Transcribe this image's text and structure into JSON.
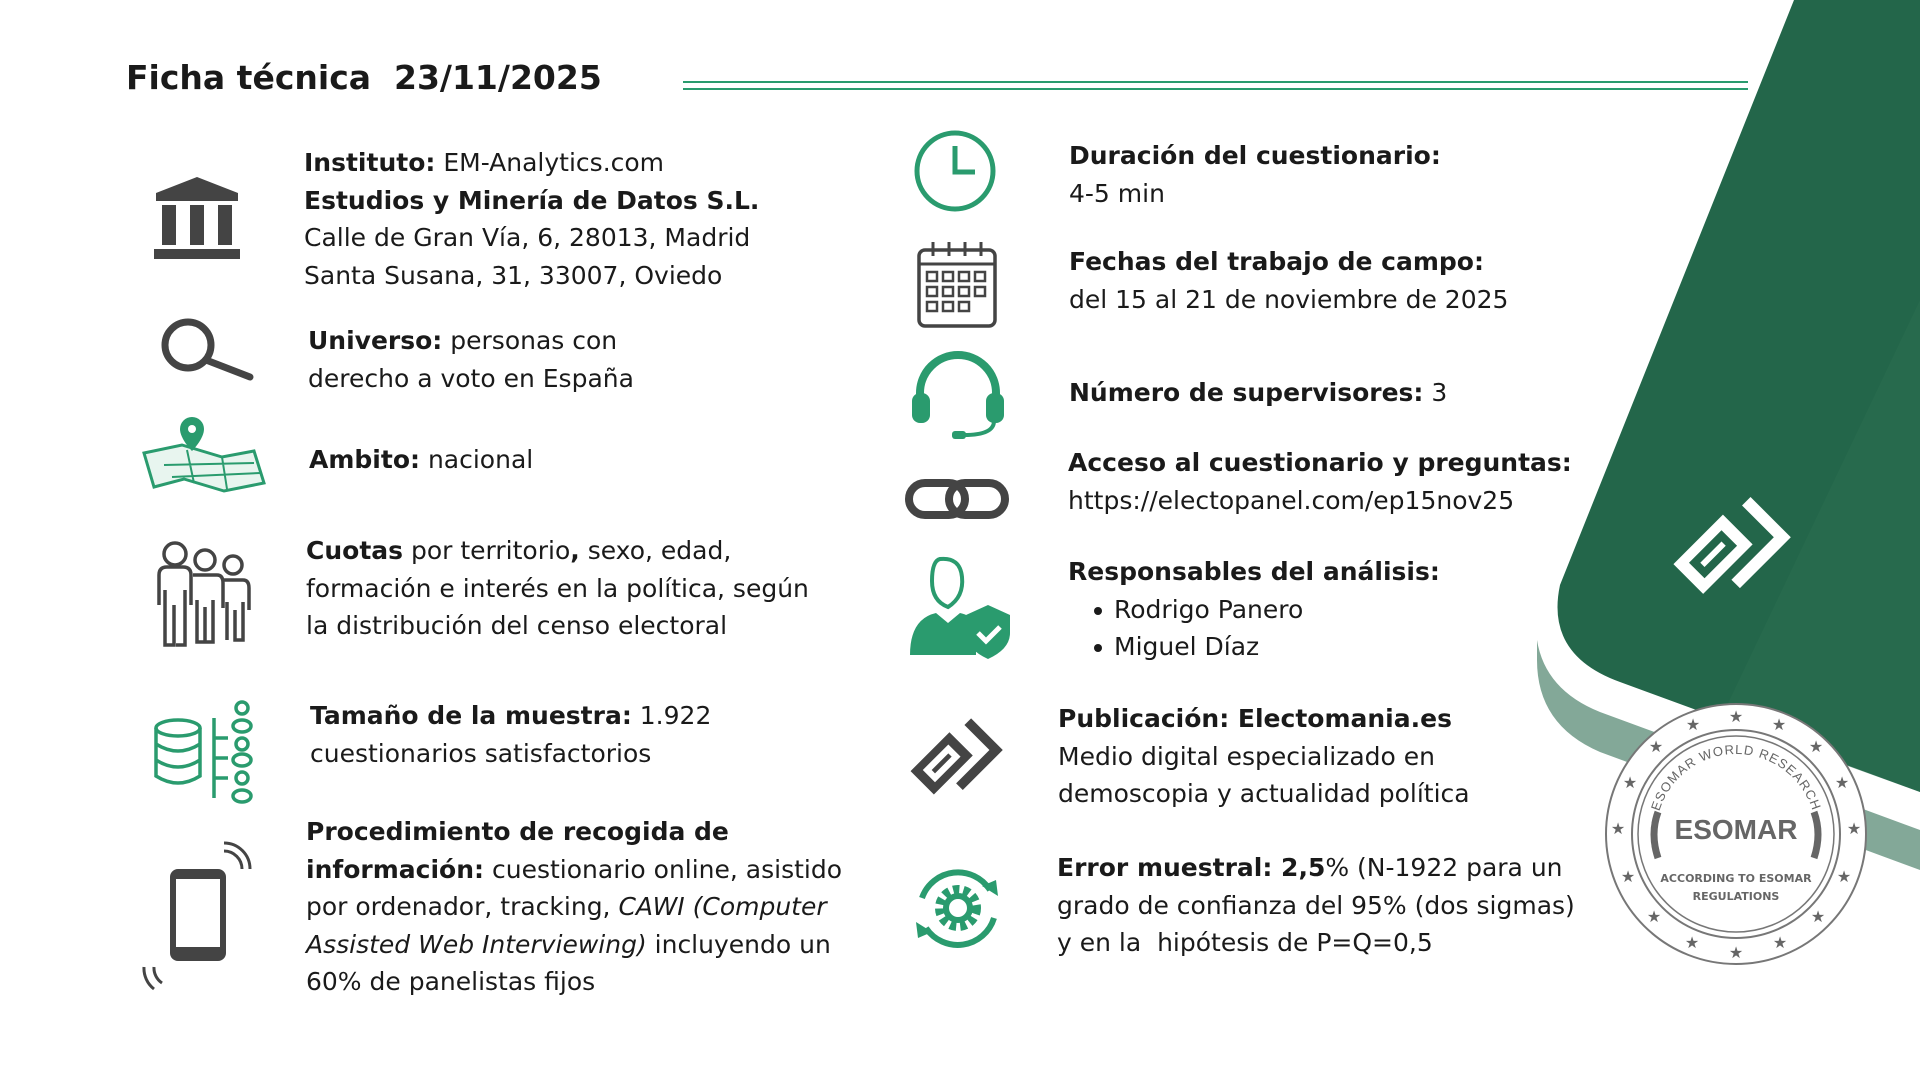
{
  "header": {
    "title": "Ficha técnica  23/11/2025"
  },
  "colors": {
    "accent": "#2a9b6e",
    "brand_dark": "#23664a",
    "brand_light": "#83a898",
    "icon_gray": "#444444"
  },
  "left": {
    "instituto": {
      "label": "Instituto:",
      "value": "EM-Analytics.com",
      "company": "Estudios y Minería de Datos S.L.",
      "address1": "Calle de Gran Vía, 6, 28013, Madrid",
      "address2": "Santa Susana, 31, 33007, Oviedo",
      "icon": "bank-icon"
    },
    "universo": {
      "label": "Universo:",
      "value1": "personas con",
      "value2": "derecho a voto en España",
      "icon": "magnifier-icon"
    },
    "ambito": {
      "label": "Ambito:",
      "value": "nacional",
      "icon": "map-pin-icon"
    },
    "cuotas": {
      "label": "Cuotas",
      "value1": "por territorio",
      "comma": ",",
      "value1b": " sexo, edad,",
      "value2": "formación e interés en la política, según",
      "value3": "la distribución del censo electoral",
      "icon": "people-icon"
    },
    "tamano": {
      "label": "Tamaño de la muestra:",
      "value1": "1.922",
      "value2": "cuestionarios satisfactorios",
      "icon": "database-icon"
    },
    "procedimiento": {
      "label1": "Procedimiento de recogida de",
      "label2": "información:",
      "value2": "cuestionario online, asistido",
      "value3a": "por ordenador, tracking, ",
      "value3b": "CAWI (Computer",
      "value4a": "Assisted Web Interviewing)",
      "value4b": " incluyendo un",
      "value5": "60% de panelistas fijos",
      "icon": "smartphone-icon"
    }
  },
  "right": {
    "duracion": {
      "label": "Duración del cuestionario:",
      "value": "4-5 min",
      "icon": "clock-icon"
    },
    "fechas": {
      "label": "Fechas del trabajo de campo:",
      "value": "del 15 al 21 de noviembre de 2025",
      "icon": "calendar-icon"
    },
    "supervisores": {
      "label": "Número de supervisores:",
      "value": "3",
      "icon": "headset-icon"
    },
    "acceso": {
      "label": "Acceso al cuestionario y preguntas:",
      "value": "https://electopanel.com/ep15nov25",
      "icon": "link-icon"
    },
    "responsables": {
      "label": "Responsables del análisis:",
      "names": [
        "Rodrigo Panero",
        "Miguel Díaz"
      ],
      "icon": "user-shield-icon"
    },
    "publicacion": {
      "label": "Publicación: Electomania.es",
      "value1": "Medio digital especializado en",
      "value2": "demoscopia y actualidad política",
      "icon": "electomania-logo-icon"
    },
    "error": {
      "label": "Error muestral: 2,5",
      "value1": "% (N-1922 para un",
      "value2": "grado de confianza del 95% (dos sigmas)",
      "value3": "y en la  hipótesis de P=Q=0,5",
      "icon": "gear-refresh-icon"
    }
  },
  "seal": {
    "top": "ESOMAR WORLD RESEARCH",
    "name": "ESOMAR",
    "bottom1": "ACCORDING TO ESOMAR",
    "bottom2": "REGULATIONS"
  }
}
